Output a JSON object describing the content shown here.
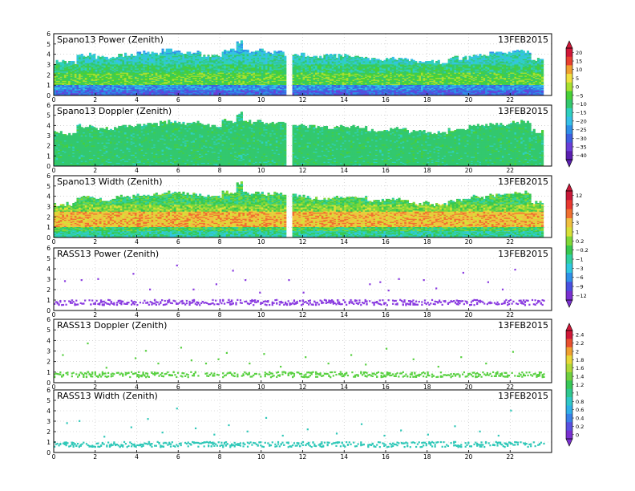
{
  "colors": {
    "power_scale": [
      "#5a1fb0",
      "#6a3fd8",
      "#3f5fe0",
      "#2f8fe8",
      "#36c0e8",
      "#2fd0c0",
      "#33c86e",
      "#48d038",
      "#a8e030",
      "#f0e040",
      "#f0a030",
      "#e84030",
      "#d01838"
    ],
    "width_scale": [
      "#7a30d0",
      "#4a50e0",
      "#3090e8",
      "#30c8e0",
      "#30d0a0",
      "#38c850",
      "#80d838",
      "#d8e038",
      "#f0c040",
      "#f07030",
      "#e83830",
      "#c81838"
    ],
    "rass_power": "#8a3be0",
    "rass_doppler": "#58d040",
    "rass_width": "#30c8b8"
  },
  "colorbars": [
    {
      "labels": [
        "20",
        "15",
        "10",
        "5",
        "0",
        "−5",
        "−10",
        "−15",
        "−20",
        "−25",
        "−30",
        "−35",
        "−40"
      ]
    },
    {
      "labels": [
        "12",
        "9",
        "6",
        "3",
        "1",
        "0.2",
        "−0.2",
        "−1",
        "−3",
        "−6",
        "−9",
        "−12"
      ]
    },
    {
      "labels": [
        "2.4",
        "2.2",
        "2",
        "1.8",
        "1.6",
        "1.4",
        "1.2",
        "1",
        "0.8",
        "0.6",
        "0.4",
        "0.2",
        "0"
      ]
    }
  ],
  "chart_data": [
    {
      "type": "heatmap",
      "title": "Spano13 Power (Zenith)",
      "date": "13FEB2015",
      "xlim": [
        0,
        24
      ],
      "ylim": [
        0,
        6
      ],
      "xticks": [
        "0",
        "2",
        "4",
        "6",
        "8",
        "10",
        "12",
        "14",
        "16",
        "18",
        "20",
        "22"
      ],
      "yticks": [
        "0",
        "1",
        "2",
        "3",
        "4",
        "5",
        "6"
      ],
      "grid": true,
      "gap": [
        11.1,
        11.4
      ],
      "top_height": [
        [
          0,
          3.2
        ],
        [
          1,
          3.9
        ],
        [
          2,
          3.6
        ],
        [
          3,
          3.9
        ],
        [
          4,
          4.1
        ],
        [
          5,
          4.3
        ],
        [
          6,
          4.2
        ],
        [
          7,
          3.9
        ],
        [
          8,
          4.4
        ],
        [
          8.7,
          5.2
        ],
        [
          9,
          4.3
        ],
        [
          10,
          4.2
        ],
        [
          11,
          4.0
        ],
        [
          12,
          3.8
        ],
        [
          13,
          3.8
        ],
        [
          14,
          3.8
        ],
        [
          15,
          3.5
        ],
        [
          16,
          3.6
        ],
        [
          17,
          3.3
        ],
        [
          18,
          3.2
        ],
        [
          19,
          3.6
        ],
        [
          20,
          3.9
        ],
        [
          21,
          4.1
        ],
        [
          22,
          4.3
        ],
        [
          23,
          3.4
        ],
        [
          23.6,
          3.0
        ]
      ],
      "bands": [
        [
          0,
          0.5,
          2
        ],
        [
          0.5,
          1.0,
          3
        ],
        [
          1.0,
          2.2,
          7
        ],
        [
          2.2,
          3.0,
          6
        ],
        [
          3.0,
          4.0,
          5
        ],
        [
          4.0,
          6.0,
          4
        ]
      ]
    },
    {
      "type": "heatmap",
      "title": "Spano13 Doppler (Zenith)",
      "date": "13FEB2015",
      "xlim": [
        0,
        24
      ],
      "ylim": [
        0,
        6
      ],
      "xticks": [
        "0",
        "2",
        "4",
        "6",
        "8",
        "10",
        "12",
        "14",
        "16",
        "18",
        "20",
        "22"
      ],
      "yticks": [
        "0",
        "1",
        "2",
        "3",
        "4",
        "5",
        "6"
      ],
      "grid": true,
      "gap": [
        11.1,
        11.4
      ],
      "top_height": [
        [
          0,
          3.2
        ],
        [
          1,
          3.9
        ],
        [
          2,
          3.6
        ],
        [
          3,
          3.9
        ],
        [
          4,
          4.1
        ],
        [
          5,
          4.3
        ],
        [
          6,
          4.2
        ],
        [
          7,
          3.9
        ],
        [
          8,
          4.4
        ],
        [
          8.7,
          5.2
        ],
        [
          9,
          4.3
        ],
        [
          10,
          4.2
        ],
        [
          11,
          4.0
        ],
        [
          12,
          3.8
        ],
        [
          13,
          3.8
        ],
        [
          14,
          3.8
        ],
        [
          15,
          3.5
        ],
        [
          16,
          3.6
        ],
        [
          17,
          3.3
        ],
        [
          18,
          3.2
        ],
        [
          19,
          3.6
        ],
        [
          20,
          3.9
        ],
        [
          21,
          4.1
        ],
        [
          22,
          4.3
        ],
        [
          23,
          3.4
        ],
        [
          23.6,
          3.0
        ]
      ],
      "bands": [
        [
          0,
          6.0,
          6
        ]
      ]
    },
    {
      "type": "heatmap",
      "title": "Spano13 Width (Zenith)",
      "date": "13FEB2015",
      "xlim": [
        0,
        24
      ],
      "ylim": [
        0,
        6
      ],
      "xticks": [
        "0",
        "2",
        "4",
        "6",
        "8",
        "10",
        "12",
        "14",
        "16",
        "18",
        "20",
        "22"
      ],
      "yticks": [
        "0",
        "1",
        "2",
        "3",
        "4",
        "5",
        "6"
      ],
      "grid": true,
      "gap": [
        11.1,
        11.4
      ],
      "top_height": [
        [
          0,
          3.2
        ],
        [
          1,
          3.9
        ],
        [
          2,
          3.6
        ],
        [
          3,
          3.9
        ],
        [
          4,
          4.1
        ],
        [
          5,
          4.3
        ],
        [
          6,
          4.2
        ],
        [
          7,
          3.9
        ],
        [
          8,
          4.4
        ],
        [
          8.7,
          5.2
        ],
        [
          9,
          4.3
        ],
        [
          10,
          4.2
        ],
        [
          11,
          4.0
        ],
        [
          12,
          3.8
        ],
        [
          13,
          3.8
        ],
        [
          14,
          3.8
        ],
        [
          15,
          3.5
        ],
        [
          16,
          3.6
        ],
        [
          17,
          3.3
        ],
        [
          18,
          3.2
        ],
        [
          19,
          3.6
        ],
        [
          20,
          3.9
        ],
        [
          21,
          4.1
        ],
        [
          22,
          4.3
        ],
        [
          23,
          3.4
        ],
        [
          23.6,
          3.0
        ]
      ],
      "bands": [
        [
          0,
          0.6,
          4
        ],
        [
          0.6,
          1.0,
          5
        ],
        [
          1.0,
          2.5,
          8
        ],
        [
          2.5,
          3.2,
          6
        ],
        [
          3.2,
          6.0,
          5
        ]
      ]
    },
    {
      "type": "scatter",
      "title": "RASS13 Power (Zenith)",
      "date": "13FEB2015",
      "xlim": [
        0,
        24
      ],
      "ylim": [
        0,
        6
      ],
      "xticks": [
        "0",
        "2",
        "4",
        "6",
        "8",
        "10",
        "12",
        "14",
        "16",
        "18",
        "20",
        "22"
      ],
      "yticks": [
        "0",
        "1",
        "2",
        "3",
        "4",
        "5",
        "6"
      ],
      "grid": true,
      "band": [
        0.6,
        1.1
      ],
      "scatter": [
        [
          0.5,
          2.9
        ],
        [
          1.3,
          3.0
        ],
        [
          2.1,
          3.1
        ],
        [
          3.8,
          3.6
        ],
        [
          4.6,
          2.1
        ],
        [
          5.9,
          4.4
        ],
        [
          6.7,
          2.1
        ],
        [
          7.8,
          2.6
        ],
        [
          8.6,
          3.9
        ],
        [
          9.2,
          3.0
        ],
        [
          9.9,
          1.8
        ],
        [
          11.3,
          3.0
        ],
        [
          12.0,
          1.8
        ],
        [
          15.2,
          2.6
        ],
        [
          15.7,
          2.8
        ],
        [
          16.1,
          2.0
        ],
        [
          16.6,
          3.1
        ],
        [
          17.8,
          3.0
        ],
        [
          18.4,
          2.2
        ],
        [
          19.7,
          3.7
        ],
        [
          20.9,
          2.8
        ],
        [
          21.6,
          2.1
        ],
        [
          22.2,
          4.0
        ]
      ]
    },
    {
      "type": "scatter",
      "title": "RASS13 Doppler (Zenith)",
      "date": "13FEB2015",
      "xlim": [
        0,
        24
      ],
      "ylim": [
        0,
        6
      ],
      "xticks": [
        "0",
        "2",
        "4",
        "6",
        "8",
        "10",
        "12",
        "14",
        "16",
        "18",
        "20",
        "22"
      ],
      "yticks": [
        "0",
        "1",
        "2",
        "3",
        "4",
        "5",
        "6"
      ],
      "grid": true,
      "band": [
        0.6,
        1.1
      ],
      "scatter": [
        [
          0.4,
          2.7
        ],
        [
          1.6,
          3.8
        ],
        [
          2.5,
          1.5
        ],
        [
          3.9,
          2.4
        ],
        [
          4.4,
          3.1
        ],
        [
          5.0,
          1.9
        ],
        [
          6.1,
          3.4
        ],
        [
          6.6,
          2.2
        ],
        [
          7.3,
          1.9
        ],
        [
          7.9,
          2.3
        ],
        [
          8.3,
          2.9
        ],
        [
          9.4,
          1.9
        ],
        [
          10.1,
          2.8
        ],
        [
          10.9,
          1.6
        ],
        [
          12.1,
          2.5
        ],
        [
          13.2,
          1.9
        ],
        [
          14.3,
          2.7
        ],
        [
          15.0,
          1.8
        ],
        [
          16.0,
          3.3
        ],
        [
          17.3,
          2.3
        ],
        [
          18.5,
          1.6
        ],
        [
          19.6,
          2.5
        ],
        [
          20.8,
          1.9
        ],
        [
          22.1,
          3.0
        ]
      ]
    },
    {
      "type": "scatter",
      "title": "RASS13 Width (Zenith)",
      "date": "13FEB2015",
      "xlim": [
        0,
        24
      ],
      "ylim": [
        0,
        6
      ],
      "xticks": [
        "0",
        "2",
        "4",
        "6",
        "8",
        "10",
        "12",
        "14",
        "16",
        "18",
        "20",
        "22"
      ],
      "yticks": [
        "0",
        "1",
        "2",
        "3",
        "4",
        "5",
        "6"
      ],
      "grid": true,
      "band": [
        0.6,
        1.1
      ],
      "scatter": [
        [
          0.6,
          2.9
        ],
        [
          1.2,
          3.1
        ],
        [
          2.4,
          1.6
        ],
        [
          3.7,
          2.5
        ],
        [
          4.5,
          3.3
        ],
        [
          5.2,
          2.0
        ],
        [
          5.9,
          4.3
        ],
        [
          6.8,
          2.4
        ],
        [
          7.7,
          1.8
        ],
        [
          8.4,
          2.7
        ],
        [
          9.3,
          2.1
        ],
        [
          10.2,
          3.4
        ],
        [
          11.0,
          1.7
        ],
        [
          12.2,
          2.3
        ],
        [
          13.6,
          1.9
        ],
        [
          14.8,
          2.8
        ],
        [
          15.9,
          1.7
        ],
        [
          16.7,
          2.2
        ],
        [
          18.0,
          1.8
        ],
        [
          19.3,
          2.6
        ],
        [
          20.5,
          2.1
        ],
        [
          21.4,
          1.7
        ],
        [
          22.0,
          4.1
        ]
      ]
    }
  ]
}
